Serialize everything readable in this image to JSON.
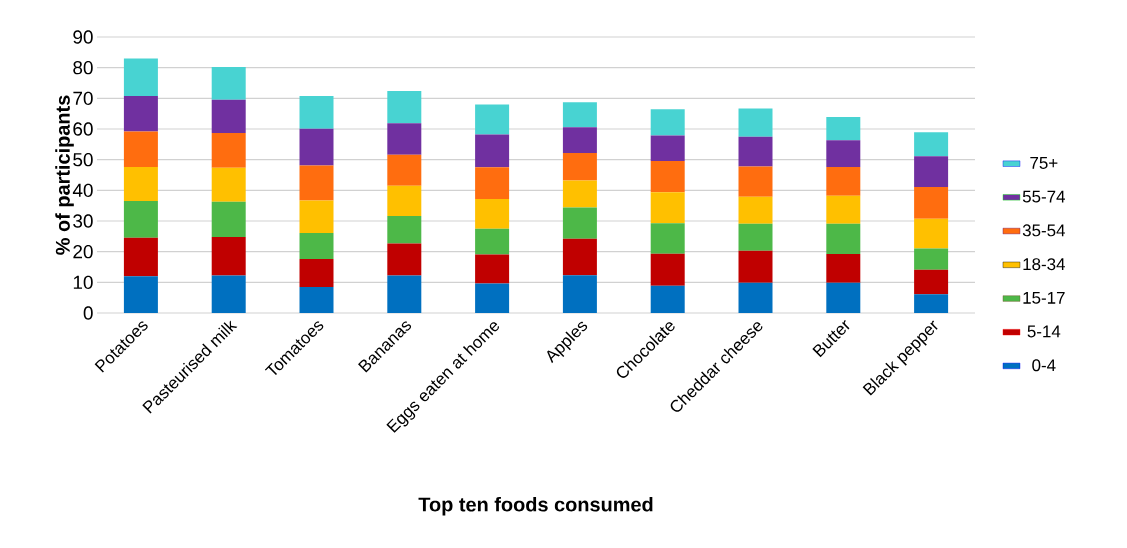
{
  "chart_data": {
    "type": "bar",
    "stacked": true,
    "xlabel": "Top ten foods consumed",
    "ylabel": "% of participants",
    "categories": [
      "Potatoes",
      "Pasteurised milk",
      "Tomatoes",
      "Bananas",
      "Eggs eaten at home",
      "Apples",
      "Chocolate",
      "Cheddar cheese",
      "Butter",
      "Black pepper"
    ],
    "series": [
      {
        "name": "0-4",
        "color": "#0070c0",
        "values": [
          12.0,
          12.2,
          8.5,
          12.2,
          9.6,
          12.3,
          8.9,
          9.9,
          9.9,
          6.1
        ]
      },
      {
        "name": "5-14",
        "color": "#c00000",
        "values": [
          12.5,
          12.6,
          9.1,
          10.5,
          9.5,
          11.9,
          10.4,
          10.4,
          9.3,
          8.0
        ]
      },
      {
        "name": "15-17",
        "color": "#4db848",
        "values": [
          12.0,
          11.5,
          8.5,
          8.9,
          8.4,
          10.2,
          10.0,
          8.8,
          9.9,
          6.9
        ]
      },
      {
        "name": "18-34",
        "color": "#ffc000",
        "values": [
          11.1,
          11.1,
          10.6,
          9.9,
          9.7,
          8.8,
          10.1,
          8.8,
          9.1,
          9.7
        ]
      },
      {
        "name": "35-54",
        "color": "#ff6d0f",
        "values": [
          11.6,
          11.3,
          11.4,
          10.1,
          10.3,
          9.0,
          10.2,
          9.9,
          9.4,
          10.4
        ]
      },
      {
        "name": "55-74",
        "color": "#7030a0",
        "values": [
          11.6,
          10.8,
          12.0,
          10.3,
          10.7,
          8.4,
          8.3,
          9.7,
          8.7,
          10.0
        ]
      },
      {
        "name": "75+",
        "color": "#48d3d2",
        "values": [
          12.2,
          10.7,
          10.7,
          10.5,
          9.8,
          8.1,
          8.5,
          9.2,
          7.6,
          7.8
        ]
      }
    ],
    "ylim": [
      0,
      90
    ],
    "yticks": [
      0,
      10,
      20,
      30,
      40,
      50,
      60,
      70,
      80,
      90
    ],
    "grid": "y",
    "legend": "right"
  }
}
